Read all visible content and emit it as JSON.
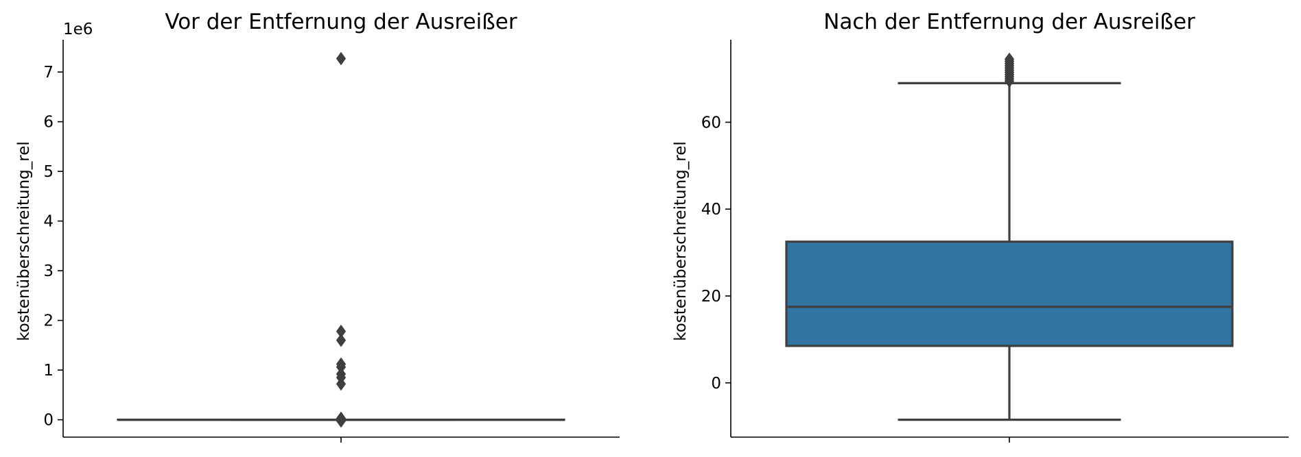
{
  "chart_data": [
    {
      "type": "box",
      "title": "Vor der Entfernung der Ausreißer",
      "ylabel": "kostenüberschreitung_rel",
      "xlabel": "",
      "y_offset_label": "1e6",
      "ylim": [
        -350000,
        7650000
      ],
      "y_ticks": [
        0,
        1000000,
        2000000,
        3000000,
        4000000,
        5000000,
        6000000,
        7000000
      ],
      "y_tick_labels": [
        "0",
        "1",
        "2",
        "3",
        "4",
        "5",
        "6",
        "7"
      ],
      "box": {
        "whisker_low": -10,
        "q1": 8,
        "median": 17,
        "q3": 32,
        "whisker_high": 69
      },
      "outliers": [
        7270000,
        1780000,
        1600000,
        1120000,
        1060000,
        920000,
        850000,
        720000,
        30000,
        15000,
        0,
        -15000,
        -25000
      ],
      "color": "#3274a1",
      "grid": false
    },
    {
      "type": "box",
      "title": "Nach der Entfernung der Ausreißer",
      "ylabel": "kostenüberschreitung_rel",
      "xlabel": "",
      "ylim": [
        -12.5,
        79
      ],
      "y_ticks": [
        0,
        20,
        40,
        60
      ],
      "y_tick_labels": [
        "0",
        "20",
        "40",
        "60"
      ],
      "box": {
        "whisker_low": -8.5,
        "q1": 8.5,
        "median": 17.5,
        "q3": 32.5,
        "whisker_high": 69
      },
      "outliers": [
        69.5,
        70,
        70.5,
        71,
        71.5,
        72,
        72.5,
        73,
        73.5,
        74,
        74.5
      ],
      "color": "#3274a1",
      "grid": false
    }
  ]
}
